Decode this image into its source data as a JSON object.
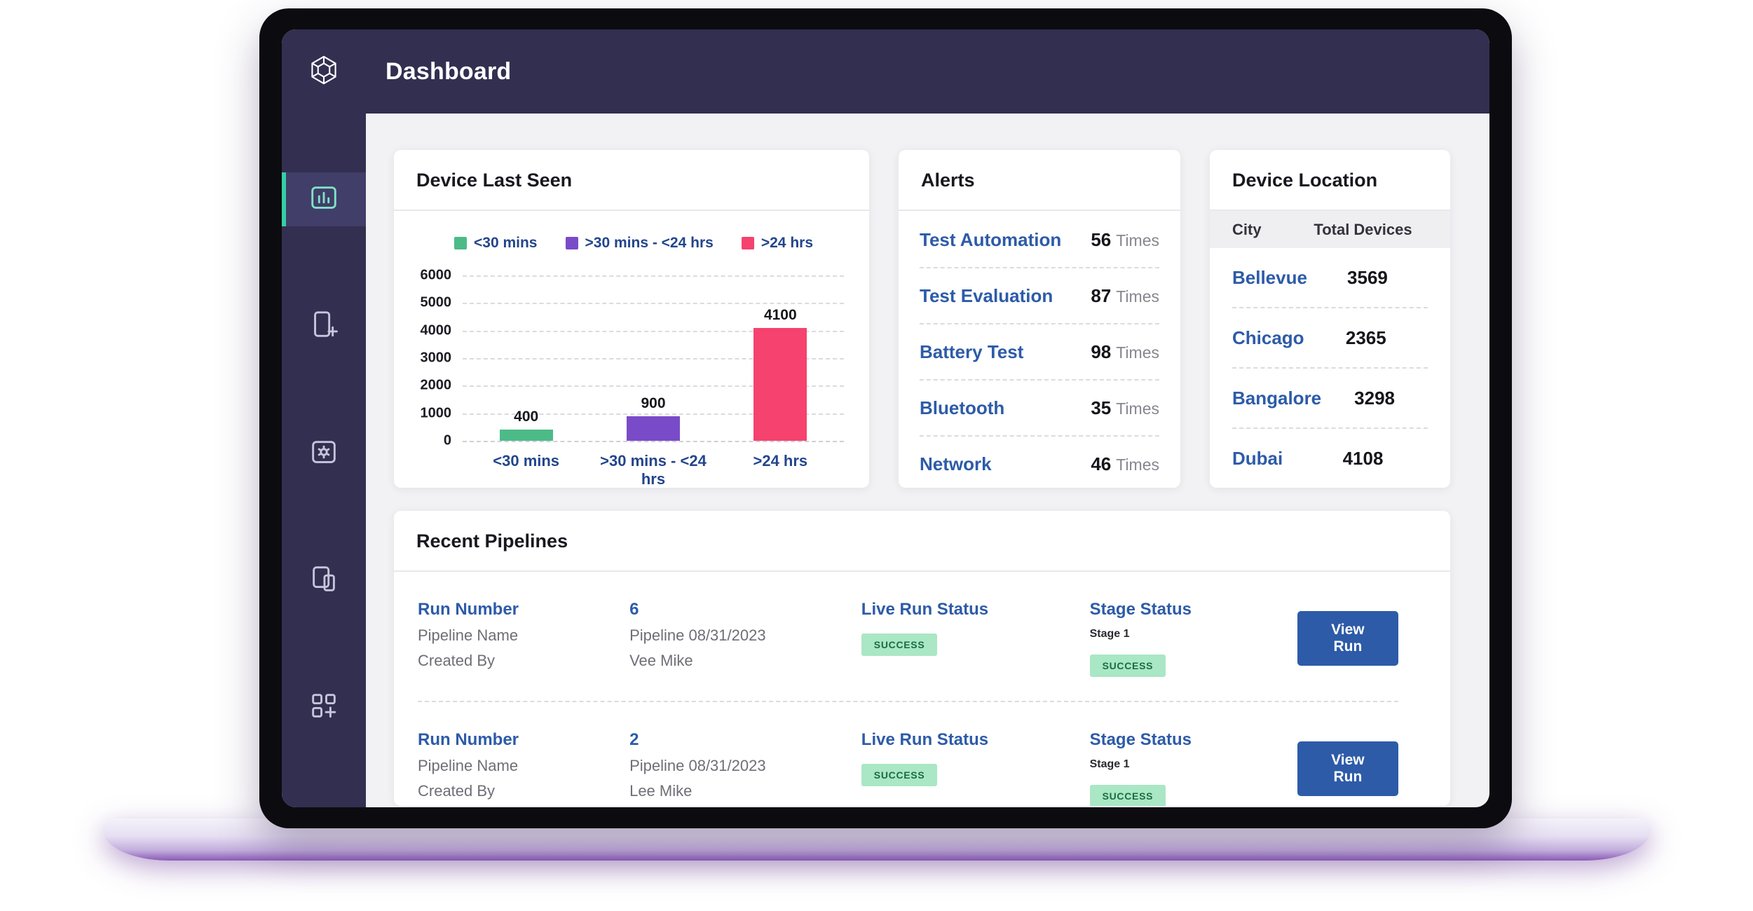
{
  "app": {
    "title": "Dashboard"
  },
  "colors": {
    "brand_navy": "#322F51",
    "accent_teal": "#35D0A5",
    "link_blue": "#2D5BA8",
    "success_badge_bg": "#A9E7C5",
    "success_badge_text": "#1A6B42",
    "page_bg": "#F2F2F5"
  },
  "sidebar": {
    "items": [
      {
        "icon": "dashboard-chart-icon",
        "active": true
      },
      {
        "icon": "add-device-icon",
        "active": false
      },
      {
        "icon": "device-settings-icon",
        "active": false
      },
      {
        "icon": "devices-icon",
        "active": false
      },
      {
        "icon": "apps-add-icon",
        "active": false
      }
    ]
  },
  "device_last_seen": {
    "title": "Device Last Seen"
  },
  "chart_data": {
    "type": "bar",
    "title": "Device Last Seen",
    "categories": [
      "<30 mins",
      ">30 mins - <24 hrs",
      ">24 hrs"
    ],
    "values": [
      400,
      900,
      4100
    ],
    "bar_colors": [
      "#4CBB88",
      "#7A4BC8",
      "#F5426E"
    ],
    "legend": [
      "<30 mins",
      ">30 mins - <24 hrs",
      ">24 hrs"
    ],
    "legend_position": "top",
    "xlabel": "",
    "ylabel": "",
    "ylim": [
      0,
      6000
    ],
    "yticks": [
      "6000",
      "5000",
      "4000",
      "3000",
      "2000",
      "1000",
      "0"
    ],
    "grid": "dashed-horizontal"
  },
  "alerts": {
    "title": "Alerts",
    "unit": "Times",
    "items": [
      {
        "label": "Test Automation",
        "count": "56"
      },
      {
        "label": "Test Evaluation",
        "count": "87"
      },
      {
        "label": "Battery Test",
        "count": "98"
      },
      {
        "label": "Bluetooth",
        "count": "35"
      },
      {
        "label": "Network",
        "count": "46"
      }
    ]
  },
  "device_location": {
    "title": "Device Location",
    "columns": {
      "city": "City",
      "total": "Total Devices"
    },
    "rows": [
      {
        "city": "Bellevue",
        "total": "3569"
      },
      {
        "city": "Chicago",
        "total": "2365"
      },
      {
        "city": "Bangalore",
        "total": "3298"
      },
      {
        "city": "Dubai",
        "total": "4108"
      }
    ]
  },
  "recent_pipelines": {
    "title": "Recent Pipelines",
    "labels": {
      "run_number": "Run Number",
      "pipeline_name": "Pipeline Name",
      "created_by": "Created By",
      "live_run_status": "Live Run Status",
      "stage_status": "Stage Status",
      "view_run": "View Run"
    },
    "rows": [
      {
        "run_number": "6",
        "pipeline_name": "Pipeline 08/31/2023",
        "created_by": "Vee Mike",
        "live_status": "SUCCESS",
        "stage_label": "Stage 1",
        "stage_status": "SUCCESS"
      },
      {
        "run_number": "2",
        "pipeline_name": "Pipeline 08/31/2023",
        "created_by": "Lee Mike",
        "live_status": "SUCCESS",
        "stage_label": "Stage 1",
        "stage_status": "SUCCESS"
      }
    ]
  }
}
